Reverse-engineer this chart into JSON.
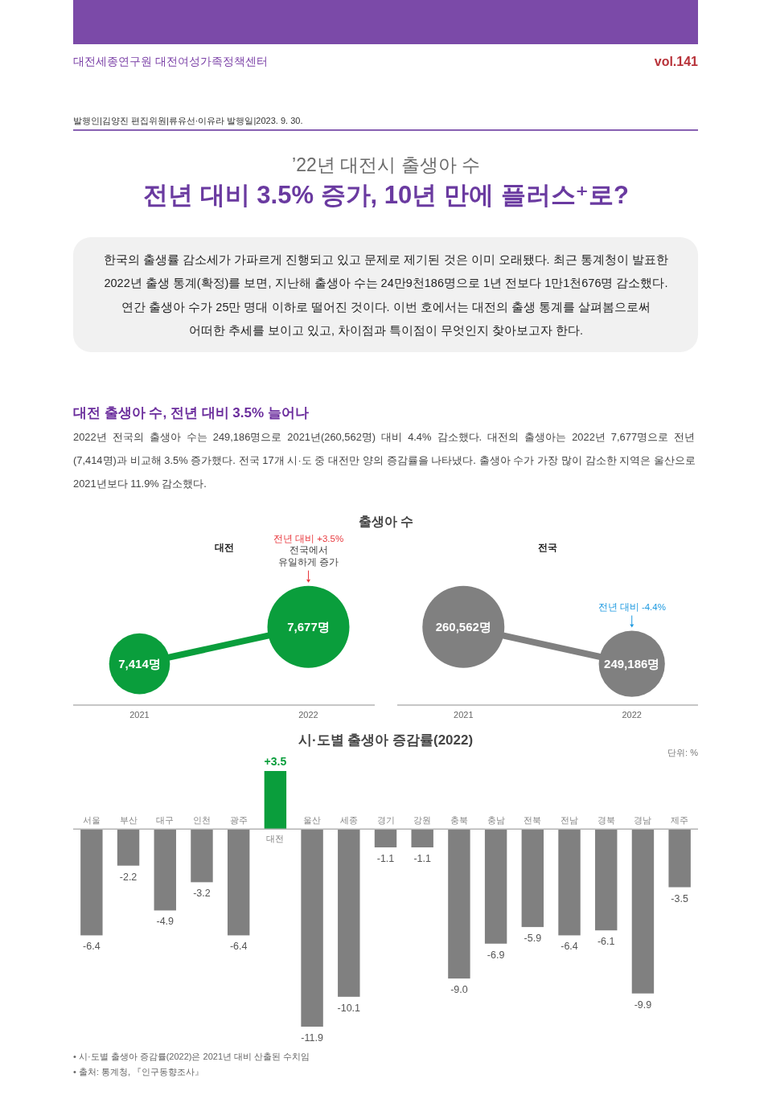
{
  "chart_data": [
    {
      "type": "other",
      "title": "전년 대비 3.5% 증가, 10년 만에 플러스⁺로?",
      "subtitle": "’22년 대전시 출생아 수",
      "annotations": [
        "대전세종연구원 대전여성가족정책센터",
        "vol.141",
        "발행인|김양진 편집위원|류유선·이유라 발행일|2023. 9. 30.",
        "한국의 출생률 감소세가 가파르게 진행되고 있고 문제로 제기된 것은 이미 오래됐다. 최근 통계청이 발표한\n2022년 출생 통계(확정)를 보면, 지난해 출생아 수는 24만9천186명으로 1년 전보다 1만1천676명 감소했다.\n연간 출생아 수가 25만 명대 이하로 떨어진 것이다. 이번 호에서는 대전의 출생 통계를 살펴봄으로써\n어떠한 추세를 보이고 있고, 차이점과 특이점이 무엇인지 찾아보고자 한다.",
        "대전 출생아 수, 전년 대비 3.5% 늘어나",
        "2022년 전국의 출생아 수는 249,186명으로 2021년(260,562명) 대비 4.4% 감소했다. 대전의 출생아는 2022년 7,677명으로 전년\n(7,414명)과 비교해 3.5% 증가했다. 전국 17개 시·도 중 대전만 양의 증감률을 나타냈다. 출생아 수가 가장 많이 감소한 지역은 울산으로\n2021년보다 11.9% 감소했다.",
        "출생아 수"
      ]
    },
    {
      "type": "bubble",
      "title": "대전",
      "categories": [
        "2021",
        "2022"
      ],
      "tick_labels": "x",
      "series": [
        {
          "type": "line",
          "color": "#0a9e3c",
          "values": [
            7414,
            7677
          ]
        },
        {
          "type": "bubble",
          "color": "#0a9e3c",
          "values": [
            7414,
            7677
          ],
          "sizes": [
            0.55,
            1
          ],
          "value_labels": [
            "7,414명",
            "7,677명"
          ]
        }
      ],
      "annotations": [
        "전년 대비 +3.5%",
        "전국에서\n유일하게 증가"
      ]
    },
    {
      "type": "bubble",
      "title": "전국",
      "categories": [
        "2021",
        "2022"
      ],
      "tick_labels": "x",
      "series": [
        {
          "type": "line",
          "color": "#808080",
          "values": [
            260562,
            249186
          ]
        },
        {
          "type": "bubble",
          "color": "#808080",
          "values": [
            260562,
            249186
          ],
          "sizes": [
            1,
            0.65
          ],
          "value_labels": [
            "260,562명",
            "249,186명"
          ]
        }
      ],
      "annotations": [
        "전년 대비 -4.4%"
      ]
    },
    {
      "type": "bar",
      "title": "시·도별 출생아 증감률(2022)",
      "categories": [
        "서울",
        "부산",
        "대구",
        "인천",
        "광주",
        "대전",
        "울산",
        "세종",
        "경기",
        "강원",
        "충북",
        "충남",
        "전북",
        "전남",
        "경북",
        "경남",
        "제주"
      ],
      "values": [
        -6.4,
        -2.2,
        -4.9,
        -3.2,
        -6.4,
        3.5,
        -11.9,
        -10.1,
        -1.1,
        -1.1,
        -9.0,
        -6.9,
        -5.9,
        -6.4,
        -6.1,
        -9.9,
        -3.5
      ],
      "colors": [
        "#808080",
        "#808080",
        "#808080",
        "#808080",
        "#808080",
        "#0a9e3c",
        "#808080",
        "#808080",
        "#808080",
        "#808080",
        "#808080",
        "#808080",
        "#808080",
        "#808080",
        "#808080",
        "#808080",
        "#808080"
      ],
      "value_labels": [
        "-6.4",
        "-2.2",
        "-4.9",
        "-3.2",
        "-6.4",
        "+3.5",
        "-11.9",
        "-10.1",
        "-1.1",
        "-1.1",
        "-9.0",
        "-6.9",
        "-5.9",
        "-6.4",
        "-6.1",
        "-9.9",
        "-3.5"
      ],
      "tick_labels": "x",
      "annotations": [
        "단위: %",
        "• 시·도별 출생아 증감률(2022)은 2021년 대비 산출된 수치임",
        "• 출처: 통계청, 『인구동향조사』"
      ]
    }
  ]
}
